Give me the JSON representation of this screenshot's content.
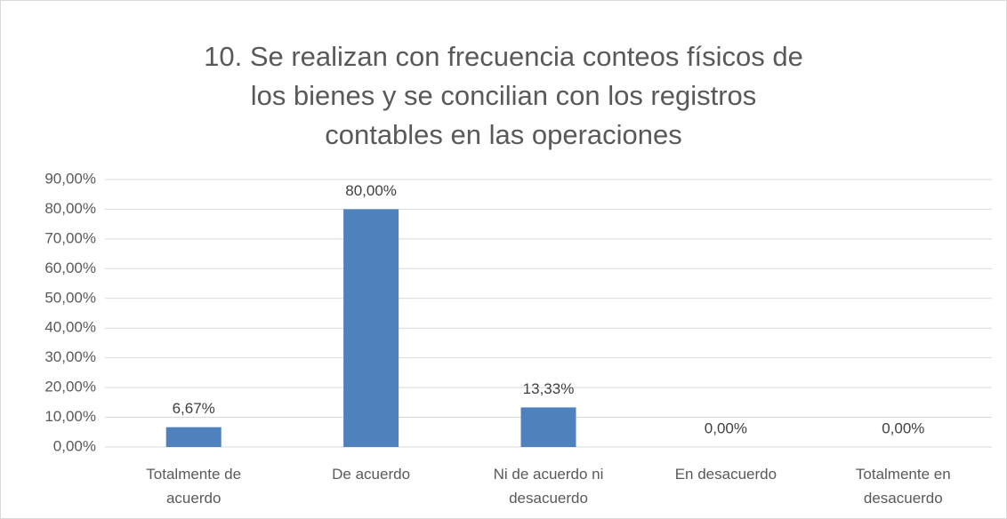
{
  "chart_data": {
    "type": "bar",
    "title": "10. Se realizan con frecuencia conteos físicos de los bienes y se concilian con los registros contables en las operaciones",
    "categories": [
      "Totalmente de acuerdo",
      "De acuerdo",
      "Ni de acuerdo ni desacuerdo",
      "En desacuerdo",
      "Totalmente en desacuerdo"
    ],
    "values": [
      6.67,
      80,
      13.33,
      0,
      0
    ],
    "value_labels": [
      "6,67%",
      "80,00%",
      "13,33%",
      "0,00%",
      "0,00%"
    ],
    "color": "#4f81bd",
    "ylim": [
      0,
      90
    ],
    "yticks": [
      {
        "value": 0,
        "label": "0,00%"
      },
      {
        "value": 10,
        "label": "10,00%"
      },
      {
        "value": 20,
        "label": "20,00%"
      },
      {
        "value": 30,
        "label": "30,00%"
      },
      {
        "value": 40,
        "label": "40,00%"
      },
      {
        "value": 50,
        "label": "50,00%"
      },
      {
        "value": 60,
        "label": "60,00%"
      },
      {
        "value": 70,
        "label": "70,00%"
      },
      {
        "value": 80,
        "label": "80,00%"
      },
      {
        "value": 90,
        "label": "90,00%"
      }
    ],
    "grid": true
  }
}
